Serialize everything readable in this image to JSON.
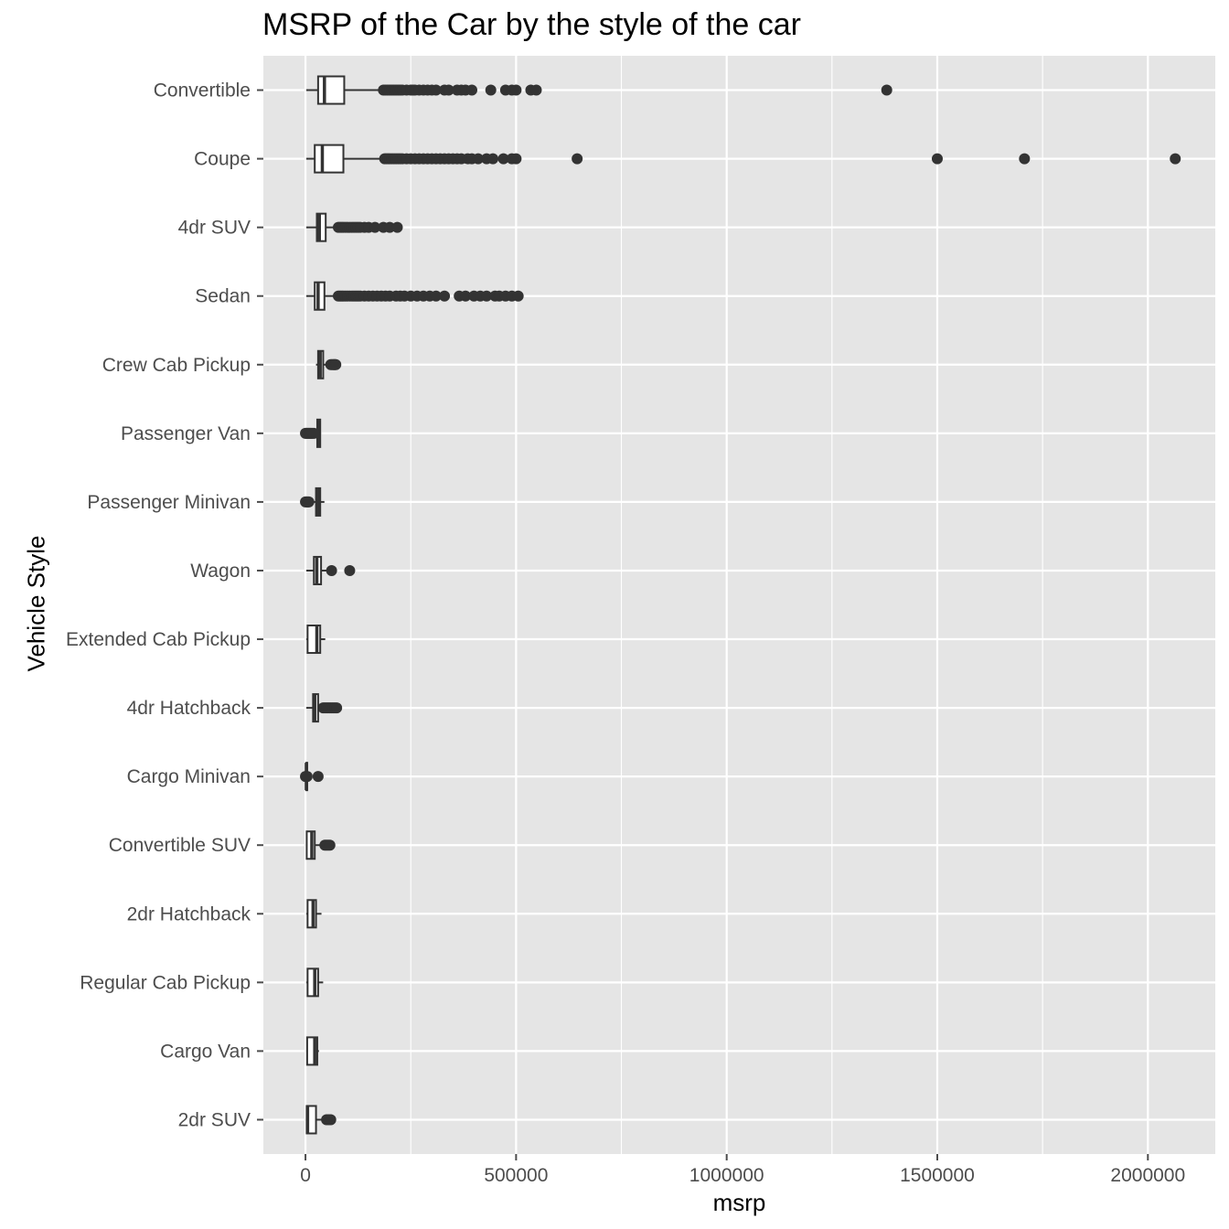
{
  "chart_data": {
    "type": "boxplot",
    "title": "MSRP of the Car by the style of the car",
    "xlabel": "msrp",
    "ylabel": "Vehicle Style",
    "xlim": [
      -100000,
      2160000
    ],
    "x_ticks": [
      0,
      500000,
      1000000,
      1500000,
      2000000
    ],
    "x_tick_labels": [
      "0",
      "500000",
      "1000000",
      "1500000",
      "2000000"
    ],
    "grid": true,
    "colors": {
      "panel": "#e5e5e5",
      "grid": "#ffffff",
      "box_line": "#333333",
      "box_fill": "#ffffff",
      "point": "#333333",
      "text": "#4d4d4d"
    },
    "categories": [
      "Convertible",
      "Coupe",
      "4dr SUV",
      "Sedan",
      "Crew Cab Pickup",
      "Passenger Van",
      "Passenger Minivan",
      "Wagon",
      "Extended Cab Pickup",
      "4dr Hatchback",
      "Cargo Minivan",
      "Convertible SUV",
      "2dr Hatchback",
      "Regular Cab Pickup",
      "Cargo Van",
      "2dr SUV"
    ],
    "boxes": [
      {
        "style": "Convertible",
        "whisker_low": 2000,
        "q1": 30000,
        "median": 45000,
        "q3": 92000,
        "whisker_high": 180000,
        "outliers": [
          185000,
          190000,
          195000,
          200000,
          205000,
          210000,
          215000,
          220000,
          225000,
          230000,
          240000,
          250000,
          255000,
          260000,
          270000,
          280000,
          290000,
          300000,
          310000,
          330000,
          340000,
          360000,
          370000,
          380000,
          395000,
          440000,
          475000,
          490000,
          500000,
          535000,
          548000,
          1380000
        ]
      },
      {
        "style": "Coupe",
        "whisker_low": 2000,
        "q1": 22000,
        "median": 40000,
        "q3": 90000,
        "whisker_high": 185000,
        "outliers": [
          188000,
          192000,
          196000,
          200000,
          205000,
          210000,
          215000,
          220000,
          225000,
          230000,
          240000,
          250000,
          260000,
          270000,
          280000,
          290000,
          300000,
          310000,
          320000,
          330000,
          340000,
          350000,
          360000,
          370000,
          385000,
          395000,
          410000,
          430000,
          445000,
          470000,
          490000,
          500000,
          645000,
          1500000,
          1707000,
          2065000
        ]
      },
      {
        "style": "4dr SUV",
        "whisker_low": 2000,
        "q1": 27000,
        "median": 33000,
        "q3": 48000,
        "whisker_high": 75000,
        "outliers": [
          78000,
          82000,
          86000,
          90000,
          95000,
          100000,
          105000,
          110000,
          115000,
          120000,
          125000,
          130000,
          140000,
          150000,
          165000,
          185000,
          200000,
          218000
        ]
      },
      {
        "style": "Sedan",
        "whisker_low": 2000,
        "q1": 22000,
        "median": 30000,
        "q3": 45000,
        "whisker_high": 75000,
        "outliers": [
          78000,
          82000,
          86000,
          90000,
          95000,
          100000,
          105000,
          110000,
          115000,
          120000,
          125000,
          130000,
          140000,
          150000,
          160000,
          170000,
          180000,
          190000,
          200000,
          215000,
          225000,
          235000,
          250000,
          265000,
          280000,
          295000,
          310000,
          330000,
          365000,
          380000,
          400000,
          415000,
          430000,
          450000,
          460000,
          475000,
          490000,
          505000
        ]
      },
      {
        "style": "Crew Cab Pickup",
        "whisker_low": 25000,
        "q1": 30000,
        "median": 35000,
        "q3": 42000,
        "whisker_high": 55000,
        "outliers": [
          60000,
          63000,
          66000,
          68000,
          70000,
          72000
        ]
      },
      {
        "style": "Passenger Van",
        "whisker_low": 25000,
        "q1": 28000,
        "median": 31000,
        "q3": 35000,
        "whisker_high": 37000,
        "outliers": [
          0,
          2000,
          4000,
          6000,
          8000,
          10000,
          12000,
          14000,
          17000,
          20000
        ]
      },
      {
        "style": "Passenger Minivan",
        "whisker_low": 20000,
        "q1": 25000,
        "median": 30000,
        "q3": 35000,
        "whisker_high": 45000,
        "outliers": [
          0,
          2000,
          4000,
          6000,
          8000
        ]
      },
      {
        "style": "Wagon",
        "whisker_low": 2000,
        "q1": 20000,
        "median": 27000,
        "q3": 37000,
        "whisker_high": 55000,
        "outliers": [
          62000,
          105000
        ]
      },
      {
        "style": "Extended Cab Pickup",
        "whisker_low": 2000,
        "q1": 5000,
        "median": 27000,
        "q3": 35000,
        "whisker_high": 47000,
        "outliers": []
      },
      {
        "style": "4dr Hatchback",
        "whisker_low": 2000,
        "q1": 18000,
        "median": 22000,
        "q3": 30000,
        "whisker_high": 40000,
        "outliers": [
          42000,
          46000,
          50000,
          54000,
          58000,
          62000,
          66000,
          70000,
          74000
        ]
      },
      {
        "style": "Cargo Minivan",
        "whisker_low": 2000,
        "q1": 2000,
        "median": 2000,
        "q3": 2000,
        "whisker_high": 2000,
        "outliers": [
          0,
          2000,
          4000,
          30000
        ]
      },
      {
        "style": "Convertible SUV",
        "whisker_low": 2000,
        "q1": 3000,
        "median": 15000,
        "q3": 22000,
        "whisker_high": 40000,
        "outliers": [
          46000,
          50000,
          54000,
          58000
        ]
      },
      {
        "style": "2dr Hatchback",
        "whisker_low": 2000,
        "q1": 5000,
        "median": 18000,
        "q3": 25000,
        "whisker_high": 38000,
        "outliers": []
      },
      {
        "style": "Regular Cab Pickup",
        "whisker_low": 2000,
        "q1": 5000,
        "median": 22000,
        "q3": 30000,
        "whisker_high": 42000,
        "outliers": []
      },
      {
        "style": "Cargo Van",
        "whisker_low": 2000,
        "q1": 4000,
        "median": 22000,
        "q3": 28000,
        "whisker_high": 32000,
        "outliers": []
      },
      {
        "style": "2dr SUV",
        "whisker_low": 2000,
        "q1": 3000,
        "median": 5000,
        "q3": 25000,
        "whisker_high": 45000,
        "outliers": [
          50000,
          55000,
          60000
        ]
      }
    ]
  }
}
